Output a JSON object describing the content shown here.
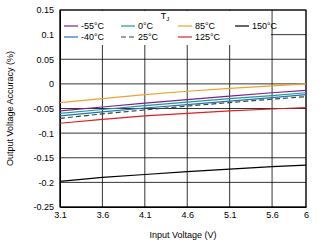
{
  "chart_data": {
    "type": "line",
    "x_label": "Input Voltage (V)",
    "y_label": "Output Voltage Accuracy (%)",
    "legend_title": "TJ",
    "legend": "top",
    "grid": true,
    "x": [
      3.1,
      3.6,
      4.1,
      4.6,
      5.1,
      5.6,
      6
    ],
    "xlim": [
      3.1,
      6
    ],
    "xticks": [
      3.1,
      3.6,
      4.1,
      4.6,
      5.1,
      5.6,
      6
    ],
    "ylim": [
      -0.25,
      0.15
    ],
    "yticks": [
      -0.25,
      -0.2,
      -0.15,
      -0.1,
      -0.05,
      0,
      0.05,
      0.1,
      0.15
    ],
    "series": [
      {
        "name": "-55°C",
        "color": "#7f1f8f",
        "line_style": "solid",
        "values": [
          -0.055,
          -0.047,
          -0.039,
          -0.032,
          -0.025,
          -0.018,
          -0.013
        ]
      },
      {
        "name": "-40°C",
        "color": "#2a6ebb",
        "line_style": "solid",
        "values": [
          -0.065,
          -0.057,
          -0.049,
          -0.042,
          -0.035,
          -0.028,
          -0.022
        ]
      },
      {
        "name": "0°C",
        "color": "#1a9a9a",
        "line_style": "solid",
        "values": [
          -0.06,
          -0.052,
          -0.044,
          -0.037,
          -0.03,
          -0.024,
          -0.018
        ]
      },
      {
        "name": "25°C",
        "color": "#2f4f2f",
        "line_style": "dashed",
        "values": [
          -0.07,
          -0.061,
          -0.053,
          -0.045,
          -0.038,
          -0.031,
          -0.026
        ]
      },
      {
        "name": "85°C",
        "color": "#f0a030",
        "line_style": "solid",
        "values": [
          -0.038,
          -0.03,
          -0.022,
          -0.015,
          -0.009,
          -0.004,
          0.0
        ]
      },
      {
        "name": "125°C",
        "color": "#e02020",
        "line_style": "solid",
        "values": [
          -0.08,
          -0.072,
          -0.065,
          -0.06,
          -0.055,
          -0.051,
          -0.048
        ]
      },
      {
        "name": "150°C",
        "color": "#000000",
        "line_style": "solid",
        "values": [
          -0.198,
          -0.19,
          -0.184,
          -0.178,
          -0.173,
          -0.168,
          -0.165
        ]
      }
    ]
  }
}
